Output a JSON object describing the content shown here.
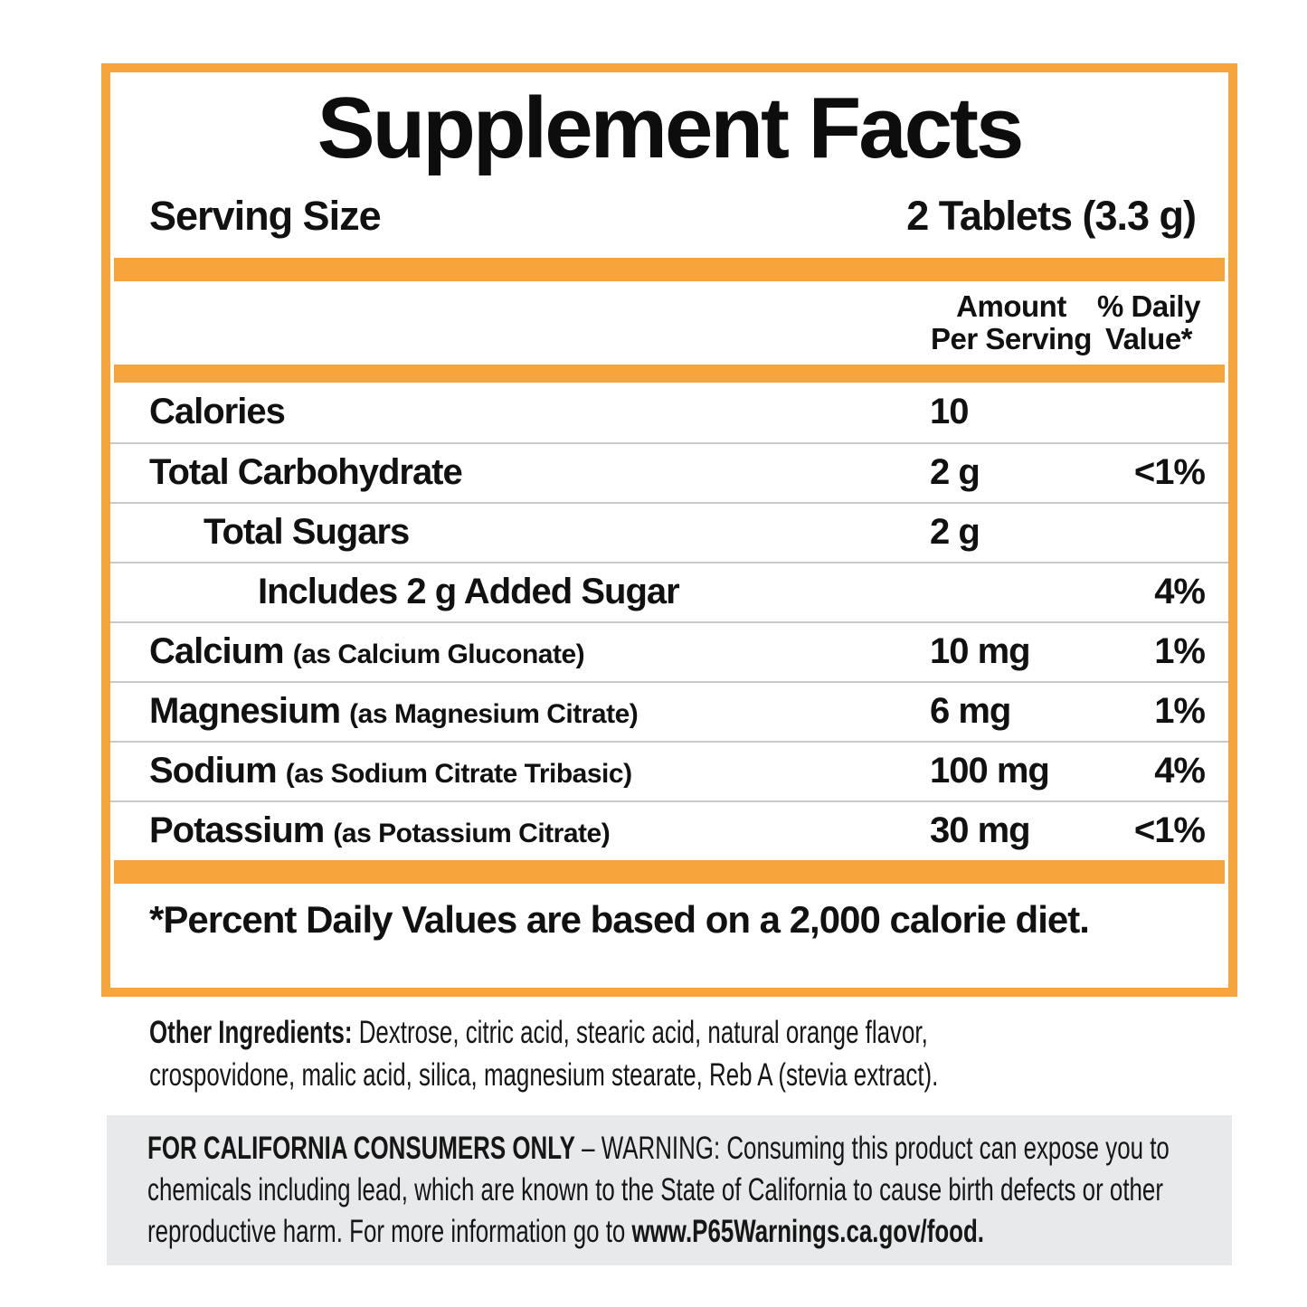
{
  "label": {
    "title": "Supplement Facts",
    "serving": {
      "label": "Serving Size",
      "value": "2 Tablets (3.3 g)"
    },
    "columns": {
      "amount_line1": "Amount",
      "amount_line2": "Per Serving",
      "dv_line1": "% Daily",
      "dv_line2": "Value*"
    },
    "rows": [
      {
        "name": "Calories",
        "detail": "",
        "amount": "10",
        "dv": ""
      },
      {
        "name": "Total Carbohydrate",
        "detail": "",
        "amount": "2 g",
        "dv": "<1%"
      },
      {
        "name": "Total Sugars",
        "detail": "",
        "amount": "2 g",
        "dv": ""
      },
      {
        "name": "Includes 2 g Added Sugar",
        "detail": "",
        "amount": "",
        "dv": "4%"
      },
      {
        "name": "Calcium",
        "detail": "(as Calcium Gluconate)",
        "amount": "10 mg",
        "dv": "1%"
      },
      {
        "name": "Magnesium",
        "detail": "(as Magnesium Citrate)",
        "amount": "6 mg",
        "dv": "1%"
      },
      {
        "name": "Sodium",
        "detail": "(as Sodium Citrate Tribasic)",
        "amount": "100 mg",
        "dv": "4%"
      },
      {
        "name": "Potassium",
        "detail": "(as Potassium Citrate)",
        "amount": "30 mg",
        "dv": "<1%"
      }
    ],
    "footnote": "*Percent Daily Values are based on a 2,000 calorie diet."
  },
  "other_ingredients": {
    "label": "Other Ingredients:",
    "text": " Dextrose, citric acid, stearic acid, natural orange flavor, crospovidone, malic acid, silica, magnesium stearate, Reb A (stevia extract)."
  },
  "california_warning": {
    "lead_bold": "FOR CALIFORNIA CONSUMERS ONLY",
    "body": " – WARNING: Consuming this product can expose you to chemicals including lead, which are known to the State of California to cause birth defects or other reproductive harm. For more information go to ",
    "link_bold": "www.P65Warnings.ca.gov/food."
  },
  "colors": {
    "accent_orange": "#F5A53C",
    "warning_background": "#E8E9EB",
    "separator_gray": "#C9C9C9",
    "text": "#111111"
  }
}
